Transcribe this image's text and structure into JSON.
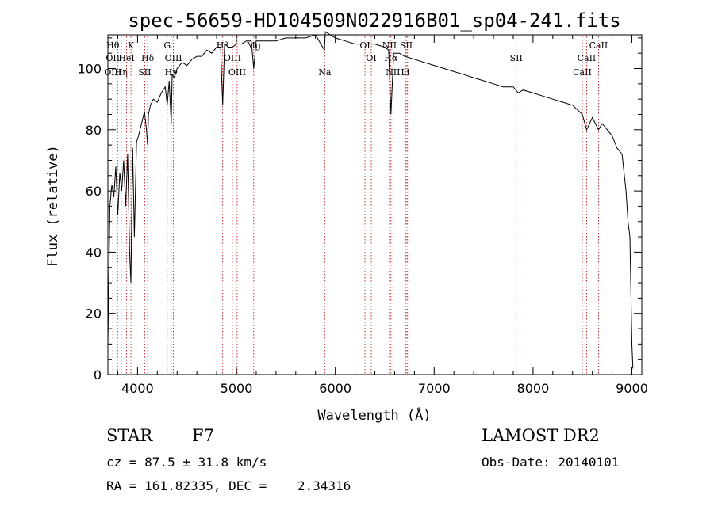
{
  "chart_data": {
    "type": "line",
    "title": "spec-56659-HD104509N022916B01_sp04-241.fits",
    "xlabel": "Wavelength (Å)",
    "ylabel": "Flux (relative)",
    "xlim": [
      3700,
      9100
    ],
    "ylim": [
      0,
      111
    ],
    "xticks": [
      4000,
      5000,
      6000,
      7000,
      8000,
      9000
    ],
    "xtick_labels": [
      "4000",
      "5000",
      "6000",
      "7000",
      "8000",
      "9000"
    ],
    "yticks": [
      0,
      20,
      40,
      60,
      80,
      100
    ],
    "ytick_labels": [
      "0",
      "20",
      "40",
      "60",
      "80",
      "100"
    ],
    "grid": false,
    "series": [
      {
        "x": [
          3700,
          3720,
          3740,
          3760,
          3780,
          3800,
          3820,
          3840,
          3860,
          3880,
          3900,
          3920,
          3933,
          3950,
          3968,
          3990,
          4010,
          4040,
          4070,
          4090,
          4102,
          4110,
          4130,
          4160,
          4200,
          4240,
          4280,
          4300,
          4320,
          4340,
          4350,
          4370,
          4400,
          4450,
          4500,
          4550,
          4600,
          4650,
          4700,
          4750,
          4800,
          4840,
          4861,
          4880,
          4920,
          4960,
          5000,
          5050,
          5100,
          5150,
          5175,
          5200,
          5300,
          5400,
          5500,
          5600,
          5700,
          5800,
          5890,
          5900,
          6000,
          6100,
          6200,
          6300,
          6400,
          6500,
          6540,
          6563,
          6590,
          6650,
          6700,
          6800,
          6900,
          7000,
          7100,
          7200,
          7300,
          7400,
          7500,
          7600,
          7700,
          7800,
          7850,
          7900,
          8000,
          8100,
          8200,
          8300,
          8400,
          8498,
          8542,
          8600,
          8662,
          8700,
          8750,
          8800,
          8850,
          8900,
          8940,
          8960,
          8980,
          9000,
          9010
        ],
        "y": [
          10,
          55,
          62,
          58,
          68,
          52,
          66,
          60,
          70,
          55,
          72,
          40,
          30,
          74,
          45,
          76,
          78,
          82,
          86,
          80,
          75,
          85,
          88,
          90,
          89,
          92,
          94,
          88,
          96,
          82,
          98,
          97,
          100,
          102,
          101,
          103,
          104,
          104,
          106,
          105,
          107,
          107,
          88,
          108,
          107,
          107,
          108,
          108,
          109,
          109,
          100,
          109,
          109,
          109,
          110,
          110,
          110,
          111,
          106,
          112,
          110,
          109,
          108,
          108,
          108,
          107,
          106,
          85,
          105,
          105,
          104,
          103,
          102,
          101,
          100,
          99,
          98,
          97,
          96,
          95,
          94,
          94,
          92,
          93,
          92,
          91,
          90,
          89,
          88,
          85,
          80,
          84,
          80,
          82,
          80,
          78,
          74,
          72,
          60,
          50,
          45,
          10,
          2
        ]
      }
    ],
    "line_markers": [
      {
        "x": 3750,
        "labels": [
          {
            "text": "Hθ",
            "row": 1
          },
          {
            "text": "OII",
            "row": 2
          },
          {
            "text": "OIII",
            "row": 3
          }
        ]
      },
      {
        "x": 3798,
        "labels": []
      },
      {
        "x": 3835,
        "labels": [
          {
            "text": "Hη",
            "row": 3
          }
        ]
      },
      {
        "x": 3889,
        "labels": [
          {
            "text": "HeI",
            "row": 2
          }
        ]
      },
      {
        "x": 3933,
        "labels": [
          {
            "text": "K",
            "row": 1
          }
        ]
      },
      {
        "x": 4072,
        "labels": [
          {
            "text": "SII",
            "row": 3
          }
        ]
      },
      {
        "x": 4102,
        "labels": [
          {
            "text": "Hδ",
            "row": 2
          }
        ]
      },
      {
        "x": 4300,
        "labels": [
          {
            "text": "G",
            "row": 1
          }
        ]
      },
      {
        "x": 4340,
        "labels": [
          {
            "text": "Hγ",
            "row": 3
          }
        ]
      },
      {
        "x": 4363,
        "labels": [
          {
            "text": "OIII",
            "row": 2
          }
        ]
      },
      {
        "x": 4861,
        "labels": [
          {
            "text": "Hβ",
            "row": 1
          }
        ]
      },
      {
        "x": 4959,
        "labels": [
          {
            "text": "OIII",
            "row": 2
          }
        ]
      },
      {
        "x": 5007,
        "labels": [
          {
            "text": "OIII",
            "row": 3
          }
        ]
      },
      {
        "x": 5175,
        "labels": [
          {
            "text": "Mg",
            "row": 1
          }
        ]
      },
      {
        "x": 5893,
        "labels": [
          {
            "text": "Na",
            "row": 3
          }
        ]
      },
      {
        "x": 6300,
        "labels": [
          {
            "text": "OI",
            "row": 1
          }
        ]
      },
      {
        "x": 6364,
        "labels": [
          {
            "text": "OI",
            "row": 2
          }
        ]
      },
      {
        "x": 6548,
        "labels": [
          {
            "text": "NII",
            "row": 1
          }
        ]
      },
      {
        "x": 6563,
        "labels": [
          {
            "text": "Hα",
            "row": 2
          }
        ]
      },
      {
        "x": 6583,
        "labels": [
          {
            "text": "NII",
            "row": 3
          }
        ]
      },
      {
        "x": 6708,
        "labels": [
          {
            "text": "Li",
            "row": 3
          }
        ]
      },
      {
        "x": 6717,
        "labels": [
          {
            "text": "SII",
            "row": 1
          }
        ]
      },
      {
        "x": 6731,
        "labels": []
      },
      {
        "x": 7830,
        "labels": [
          {
            "text": "SII",
            "row": 2
          }
        ]
      },
      {
        "x": 8498,
        "labels": [
          {
            "text": "CaII",
            "row": 3
          }
        ]
      },
      {
        "x": 8542,
        "labels": [
          {
            "text": "CaII",
            "row": 2
          }
        ]
      },
      {
        "x": 8662,
        "labels": [
          {
            "text": "CaII",
            "row": 1
          }
        ]
      }
    ]
  },
  "info": {
    "object_type": "STAR",
    "subclass": "F7",
    "survey": "LAMOST DR2",
    "cz": "cz = 87.5 ± 31.8 km/s",
    "obs_date": "Obs-Date: 20140101",
    "coords": "RA = 161.82335, DEC =    2.34316"
  },
  "colors": {
    "line": "#000000",
    "marker": "#b00000",
    "axes": "#000000"
  }
}
